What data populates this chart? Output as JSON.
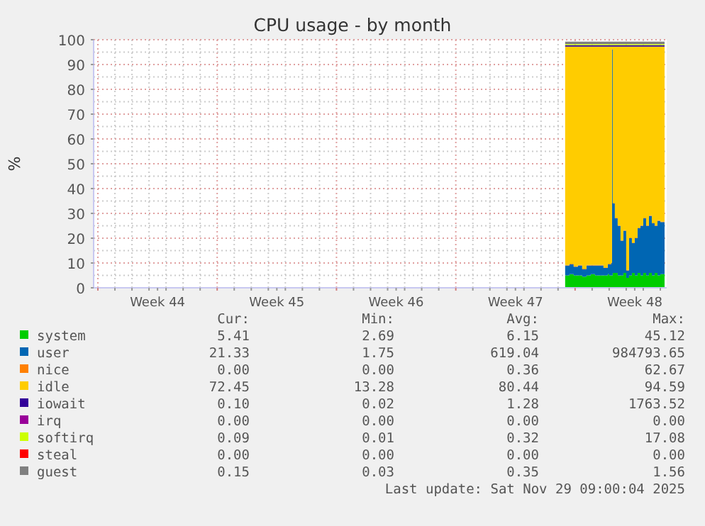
{
  "chart_data": {
    "type": "area",
    "stacked": true,
    "title": "CPU usage - by month",
    "ylabel": "%",
    "legend": "bottom",
    "grid": true,
    "xlim": [
      "2025-10-26T18:00",
      "2025-11-29T09:00"
    ],
    "xticks": [
      {
        "value": "2025-10-30T12:00",
        "label": "Week 44"
      },
      {
        "value": "2025-11-06T12:00",
        "label": "Week 45"
      },
      {
        "value": "2025-11-13T12:00",
        "label": "Week 46"
      },
      {
        "value": "2025-11-20T12:00",
        "label": "Week 47"
      },
      {
        "value": "2025-11-27T12:00",
        "label": "Week 48"
      },
      {
        "value": "2025-10-27",
        "label": null
      },
      {
        "value": "2025-10-28",
        "label": null
      },
      {
        "value": "2025-10-29",
        "label": null
      },
      {
        "value": "2025-10-30",
        "label": null
      },
      {
        "value": "2025-10-31",
        "label": null
      },
      {
        "value": "2025-11-01",
        "label": null
      },
      {
        "value": "2025-11-02",
        "label": null
      },
      {
        "value": "2025-11-03",
        "label": null
      },
      {
        "value": "2025-11-04",
        "label": null
      },
      {
        "value": "2025-11-05",
        "label": null
      },
      {
        "value": "2025-11-06",
        "label": null
      },
      {
        "value": "2025-11-07",
        "label": null
      },
      {
        "value": "2025-11-08",
        "label": null
      },
      {
        "value": "2025-11-09",
        "label": null
      },
      {
        "value": "2025-11-10",
        "label": null
      },
      {
        "value": "2025-11-11",
        "label": null
      },
      {
        "value": "2025-11-12",
        "label": null
      },
      {
        "value": "2025-11-13",
        "label": null
      },
      {
        "value": "2025-11-14",
        "label": null
      },
      {
        "value": "2025-11-15",
        "label": null
      },
      {
        "value": "2025-11-16",
        "label": null
      },
      {
        "value": "2025-11-17",
        "label": null
      },
      {
        "value": "2025-11-18",
        "label": null
      },
      {
        "value": "2025-11-19",
        "label": null
      },
      {
        "value": "2025-11-20",
        "label": null
      },
      {
        "value": "2025-11-21",
        "label": null
      },
      {
        "value": "2025-11-22",
        "label": null
      },
      {
        "value": "2025-11-23",
        "label": null
      },
      {
        "value": "2025-11-24",
        "label": null
      },
      {
        "value": "2025-11-25",
        "label": null
      },
      {
        "value": "2025-11-26",
        "label": null
      },
      {
        "value": "2025-11-27",
        "label": null
      },
      {
        "value": "2025-11-28",
        "label": null
      },
      {
        "value": "2025-11-29",
        "label": null
      }
    ],
    "ylim": [
      0,
      100
    ],
    "yticks": [
      0,
      10,
      20,
      30,
      40,
      50,
      60,
      70,
      80,
      90,
      100,
      {
        "value": 5,
        "label": null
      },
      {
        "value": 15,
        "label": null
      },
      {
        "value": 25,
        "label": null
      },
      {
        "value": 35,
        "label": null
      },
      {
        "value": 45,
        "label": null
      },
      {
        "value": 55,
        "label": null
      },
      {
        "value": 65,
        "label": null
      },
      {
        "value": 75,
        "label": null
      },
      {
        "value": 85,
        "label": null
      },
      {
        "value": 95,
        "label": null
      }
    ],
    "x": [
      "2025-11-23T10:00",
      "2025-11-23T16:00",
      "2025-11-23T22:00",
      "2025-11-24T04:00",
      "2025-11-24T10:00",
      "2025-11-24T16:00",
      "2025-11-24T22:00",
      "2025-11-25T04:00",
      "2025-11-25T10:00",
      "2025-11-25T16:00",
      "2025-11-25T22:00",
      "2025-11-26T00:00",
      "2025-11-26T03:00",
      "2025-11-26T04:00",
      "2025-11-26T05:00",
      "2025-11-26T08:00",
      "2025-11-26T12:00",
      "2025-11-26T16:00",
      "2025-11-26T20:00",
      "2025-11-27T00:00",
      "2025-11-27T04:00",
      "2025-11-27T08:00",
      "2025-11-27T12:00",
      "2025-11-27T16:00",
      "2025-11-27T20:00",
      "2025-11-28T00:00",
      "2025-11-28T04:00",
      "2025-11-28T08:00",
      "2025-11-28T12:00",
      "2025-11-28T16:00",
      "2025-11-28T20:00",
      "2025-11-29T00:00",
      "2025-11-29T06:00"
    ],
    "series": [
      {
        "name": "system",
        "color": "#00cc00",
        "values": [
          5,
          5.5,
          5,
          5,
          4.5,
          5,
          5.5,
          5,
          5,
          5,
          5.5,
          5,
          5,
          5,
          6,
          6,
          5,
          5,
          6,
          4,
          5,
          6,
          5,
          6,
          5,
          6,
          5,
          6,
          5,
          6,
          5,
          5.5,
          5.4
        ]
      },
      {
        "name": "user",
        "color": "#0066b3",
        "values": [
          4,
          4,
          3.5,
          4,
          3,
          4,
          3.5,
          4,
          4,
          3,
          4,
          4.5,
          5,
          91,
          28,
          22,
          20,
          14,
          17,
          3,
          15,
          12,
          15,
          18,
          20,
          22,
          20,
          23,
          21,
          19,
          22,
          21,
          21.3
        ]
      },
      {
        "name": "nice",
        "color": "#ff8000",
        "values": [
          0.2,
          0.2,
          0.2,
          0.2,
          0.2,
          0.2,
          0.2,
          0.2,
          0.2,
          0.2,
          0.2,
          0.2,
          0.2,
          0.2,
          0.2,
          0.2,
          0.2,
          0.2,
          0.2,
          0.2,
          0.2,
          0.2,
          0.2,
          0.2,
          0.2,
          0.2,
          0.2,
          0.2,
          0.2,
          0.2,
          0.2,
          0.2,
          0.2
        ]
      },
      {
        "name": "idle",
        "color": "#ffcc00",
        "values": [
          88,
          87.5,
          88.5,
          88,
          89.5,
          88,
          88,
          88,
          88,
          89,
          87.5,
          87.5,
          87,
          1,
          63,
          69,
          72,
          78,
          74,
          90,
          77,
          79,
          77,
          73,
          72,
          69,
          72,
          68,
          71,
          72,
          70,
          70.5,
          70.3
        ]
      },
      {
        "name": "iowait",
        "color": "#330099",
        "values": [
          0.6,
          0.6,
          0.6,
          0.6,
          0.6,
          0.6,
          0.6,
          0.6,
          0.6,
          0.6,
          0.6,
          0.6,
          0.6,
          0.6,
          0.6,
          0.6,
          0.6,
          0.6,
          0.6,
          0.6,
          0.6,
          0.6,
          0.6,
          0.6,
          0.6,
          0.6,
          0.6,
          0.6,
          0.6,
          0.6,
          0.6,
          0.6,
          0.6
        ]
      },
      {
        "name": "irq",
        "color": "#990099",
        "values": [
          null,
          null,
          null,
          null,
          null,
          null,
          null,
          null,
          null,
          null,
          null,
          null,
          null,
          null,
          null,
          null,
          null,
          null,
          null,
          null,
          null,
          null,
          null,
          null,
          null,
          null,
          null,
          null,
          null,
          null,
          null,
          null,
          null
        ]
      },
      {
        "name": "softirq",
        "color": "#ccff00",
        "values": [
          0.4,
          0.4,
          0.4,
          0.4,
          0.4,
          0.4,
          0.4,
          0.4,
          0.4,
          0.4,
          0.4,
          0.4,
          0.4,
          0.4,
          0.4,
          0.4,
          0.4,
          0.4,
          0.4,
          0.4,
          0.4,
          0.4,
          0.4,
          0.4,
          0.4,
          0.4,
          0.4,
          0.4,
          0.4,
          0.4,
          0.4,
          0.4,
          0.4
        ]
      },
      {
        "name": "steal",
        "color": "#ff0000",
        "values": [
          null,
          null,
          null,
          null,
          null,
          null,
          null,
          null,
          null,
          null,
          null,
          null,
          null,
          null,
          null,
          null,
          null,
          null,
          null,
          null,
          null,
          null,
          null,
          null,
          null,
          null,
          null,
          null,
          null,
          null,
          null,
          null,
          null
        ]
      },
      {
        "name": "guest",
        "color": "#808080",
        "values": [
          1,
          1,
          1,
          1,
          1,
          1,
          1,
          1,
          1,
          1,
          1,
          1,
          1,
          1,
          1,
          1,
          1,
          1,
          1,
          1,
          1,
          1,
          1,
          1,
          1,
          1,
          1,
          1,
          1,
          1,
          1,
          1,
          1
        ]
      }
    ],
    "annotations": [
      "Cur:",
      "Min:",
      "Avg:",
      "Max:",
      "5.41",
      "2.69",
      "6.15",
      "45.12",
      "21.33",
      "1.75",
      "619.04",
      "984793.65",
      "0.00",
      "0.00",
      "0.36",
      "62.67",
      "72.45",
      "13.28",
      "80.44",
      "94.59",
      "0.10",
      "0.02",
      "1.28",
      "1763.52",
      "0.00",
      "0.00",
      "0.00",
      "0.00",
      "0.09",
      "0.01",
      "0.32",
      "17.08",
      "0.00",
      "0.00",
      "0.00",
      "0.00",
      "0.15",
      "0.03",
      "0.35",
      "1.56",
      "Last update: Sat Nov 29 09:00:04 2025"
    ]
  }
}
